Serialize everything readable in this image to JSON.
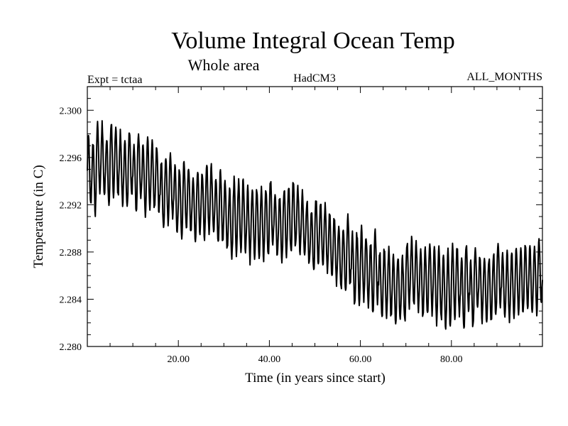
{
  "chart_data": {
    "type": "line",
    "title": "Volume Integral Ocean Temp",
    "subtitle": "Whole area",
    "annotations": {
      "left": "Expt = tctaa",
      "center": "HadCM3",
      "right": "ALL_MONTHS"
    },
    "xlabel": "Time (in years since start)",
    "ylabel": "Temperature (in C)",
    "xlim": [
      0,
      100
    ],
    "ylim": [
      2.28,
      2.302
    ],
    "x_ticks": [
      20,
      40,
      60,
      80
    ],
    "x_tick_labels": [
      "20.00",
      "40.00",
      "60.00",
      "80.00"
    ],
    "y_ticks": [
      2.28,
      2.284,
      2.288,
      2.292,
      2.296,
      2.3
    ],
    "y_tick_labels": [
      "2.280",
      "2.284",
      "2.288",
      "2.292",
      "2.296",
      "2.300"
    ],
    "grid": false,
    "legend": "none",
    "line_color": "#000000",
    "series": [
      {
        "x": [
          0,
          5,
          10,
          15,
          20,
          25,
          30,
          35,
          40,
          45,
          50,
          55,
          60,
          65,
          70,
          75,
          80,
          85,
          90,
          95,
          99.5
        ],
        "mean": [
          2.2949,
          2.2955,
          2.295,
          2.2935,
          2.2928,
          2.2922,
          2.2912,
          2.291,
          2.2908,
          2.2905,
          2.2895,
          2.288,
          2.2868,
          2.2858,
          2.2855,
          2.286,
          2.285,
          2.2852,
          2.2858,
          2.286,
          2.2862
        ],
        "amplitude": [
          0.003,
          0.003,
          0.0028,
          0.0028,
          0.0028,
          0.0027,
          0.003,
          0.003,
          0.0028,
          0.0028,
          0.0026,
          0.0027,
          0.003,
          0.0028,
          0.0027,
          0.003,
          0.003,
          0.0028,
          0.0027,
          0.0028,
          0.0028
        ],
        "cycle_years": 1
      }
    ]
  }
}
